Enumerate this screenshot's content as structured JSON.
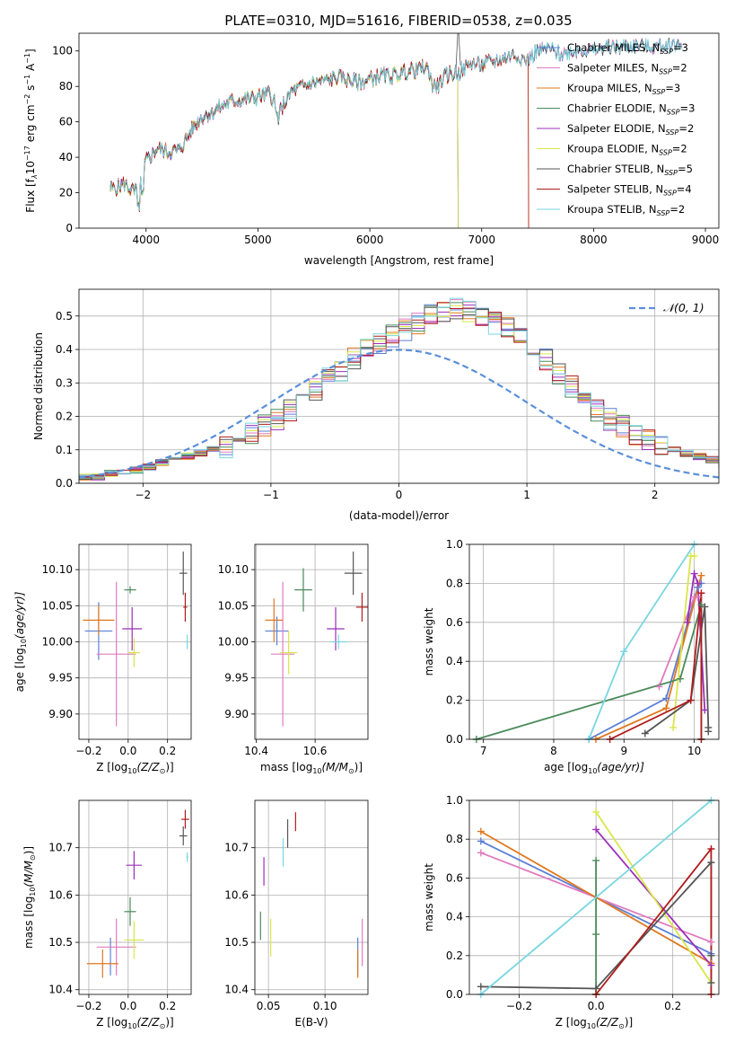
{
  "figure_title": "PLATE=0310, MJD=51616, FIBERID=0538, z=0.035",
  "colors": {
    "Chabrier MILES": "#5b7fd6",
    "Salpeter MILES": "#e07bbf",
    "Kroupa MILES": "#e0781f",
    "Chabrier ELODIE": "#4a8a5a",
    "Salpeter ELODIE": "#9b2fb8",
    "Kroupa ELODIE": "#d9e64a",
    "Chabrier STELIB": "#555555",
    "Salpeter STELIB": "#b01c1c",
    "Kroupa STELIB": "#78d6e0",
    "normal_curve": "#5b8fd9"
  },
  "chart_data": [
    {
      "id": "spectrum",
      "type": "line",
      "xlabel": "wavelength [Angstrom, rest frame]",
      "ylabel": "Flux [f",
      "ylabel_sub": "λ",
      "ylabel_rest": "10",
      "ylabel_exp1": "−17",
      "ylabel_mid": " erg cm",
      "ylabel_exp2": "−2",
      "ylabel_mid2": " s",
      "ylabel_exp3": "−1",
      "ylabel_tail": " A",
      "ylabel_exp4": "−1",
      "ylabel_end": "]",
      "xlim": [
        3400,
        9120
      ],
      "ylim": [
        0,
        110
      ],
      "xticks": [
        4000,
        5000,
        6000,
        7000,
        8000,
        9000
      ],
      "yticks": [
        0,
        20,
        40,
        60,
        80,
        100
      ],
      "continuum": {
        "x": [
          3650,
          3700,
          3800,
          3900,
          4000,
          4100,
          4200,
          4300,
          4400,
          4500,
          4600,
          4700,
          4800,
          4900,
          5000,
          5100,
          5200,
          5300,
          5400,
          5500,
          5600,
          5700,
          5800,
          5900,
          6000,
          6100,
          6200,
          6300,
          6400,
          6500,
          6600,
          6700,
          6800,
          6900,
          7000,
          7100,
          7200,
          7300,
          7400,
          7500,
          7600,
          7700,
          7800,
          7900,
          8000,
          8100,
          8200,
          8300,
          8400,
          8500,
          8600,
          8700,
          8800,
          8900,
          9000,
          9100
        ],
        "y": [
          24,
          22,
          25,
          20,
          38,
          45,
          43,
          44,
          55,
          63,
          66,
          70,
          72,
          73,
          74,
          76,
          67,
          77,
          80,
          82,
          83,
          85,
          84,
          82,
          84,
          86,
          86,
          88,
          89,
          91,
          80,
          87,
          88,
          93,
          92,
          94,
          96,
          98,
          95,
          100,
          101,
          98,
          100,
          101,
          100,
          102,
          102,
          103,
          103,
          102,
          103,
          104,
          103,
          104,
          105,
          104
        ]
      },
      "series": [
        {
          "name": "Chabrier MILES",
          "nssp": "3",
          "end_x": 8800
        },
        {
          "name": "Salpeter MILES",
          "nssp": "2",
          "end_x": 8800
        },
        {
          "name": "Kroupa MILES",
          "nssp": "3",
          "end_x": 7420
        },
        {
          "name": "Chabrier ELODIE",
          "nssp": "3",
          "end_x": 6790
        },
        {
          "name": "Salpeter ELODIE",
          "nssp": "2",
          "end_x": 6790
        },
        {
          "name": "Kroupa ELODIE",
          "nssp": "2",
          "end_x": 6790
        },
        {
          "name": "Chabrier STELIB",
          "nssp": "5",
          "end_x": 8800
        },
        {
          "name": "Salpeter STELIB",
          "nssp": "4",
          "end_x": 7420
        },
        {
          "name": "Kroupa STELIB",
          "nssp": "2",
          "end_x": 8800
        }
      ],
      "legend_label_suffix": ", N",
      "legend_label_sub": "SSP",
      "legend_label_eq": "="
    },
    {
      "id": "residuals",
      "type": "histogram",
      "xlabel": "(data-model)/error",
      "ylabel": "Normed distribution",
      "xlim": [
        -2.5,
        2.5
      ],
      "ylim": [
        0,
        0.58
      ],
      "xticks": [
        -2,
        -1,
        0,
        1,
        2
      ],
      "yticks": [
        0.0,
        0.1,
        0.2,
        0.3,
        0.4,
        0.5
      ],
      "bin_width": 0.1,
      "bin_start": -2.5,
      "base_shape": [
        0.02,
        0.02,
        0.03,
        0.03,
        0.04,
        0.05,
        0.06,
        0.07,
        0.08,
        0.09,
        0.1,
        0.11,
        0.13,
        0.15,
        0.17,
        0.19,
        0.22,
        0.25,
        0.28,
        0.31,
        0.34,
        0.37,
        0.4,
        0.42,
        0.44,
        0.46,
        0.48,
        0.5,
        0.51,
        0.52,
        0.51,
        0.5,
        0.48,
        0.46,
        0.43,
        0.4,
        0.37,
        0.33,
        0.29,
        0.25,
        0.22,
        0.19,
        0.17,
        0.15,
        0.13,
        0.11,
        0.1,
        0.09,
        0.08,
        0.07,
        0.06,
        0.05,
        0.05,
        0.04,
        0.04,
        0.03,
        0.03,
        0.03,
        0.02,
        0.02,
        0.02,
        0.02,
        0.02,
        0.02,
        0.02,
        0.02,
        0.02,
        0.02,
        0.02,
        0.02
      ],
      "legend_label": "𝒩(0, 1)"
    },
    {
      "id": "age_vs_Z",
      "type": "errorbar",
      "xlabel": "Z [log",
      "xlabel_sub": "10",
      "xlabel_tail": "(Z/Z",
      "xlabel_sub2": "⊙",
      "xlabel_end": ")]",
      "ylabel": "age  [log",
      "ylabel_sub": "10",
      "ylabel_tail": "(age/yr)]",
      "xlim": [
        -0.25,
        0.32
      ],
      "ylim": [
        9.865,
        10.135
      ],
      "xticks": [
        -0.2,
        0.0,
        0.2
      ],
      "yticks": [
        9.9,
        9.95,
        10.0,
        10.05,
        10.1
      ],
      "points": [
        {
          "series": "Chabrier MILES",
          "x": -0.15,
          "y": 10.015,
          "xerr": 0.07,
          "yerr": 0.04
        },
        {
          "series": "Salpeter MILES",
          "x": -0.06,
          "y": 9.983,
          "xerr": 0.1,
          "yerr": 0.1
        },
        {
          "series": "Kroupa MILES",
          "x": -0.15,
          "y": 10.03,
          "xerr": 0.08,
          "yerr": 0.02
        },
        {
          "series": "Chabrier ELODIE",
          "x": 0.01,
          "y": 10.072,
          "xerr": 0.03,
          "yerr": 0.005
        },
        {
          "series": "Salpeter ELODIE",
          "x": 0.02,
          "y": 10.018,
          "xerr": 0.05,
          "yerr": 0.03
        },
        {
          "series": "Kroupa ELODIE",
          "x": 0.03,
          "y": 9.985,
          "xerr": 0.03,
          "yerr": 0.02
        },
        {
          "series": "Chabrier STELIB",
          "x": 0.28,
          "y": 10.095,
          "xerr": 0.02,
          "yerr": 0.03
        },
        {
          "series": "Salpeter STELIB",
          "x": 0.29,
          "y": 10.048,
          "xerr": 0.01,
          "yerr": 0.02
        },
        {
          "series": "Kroupa STELIB",
          "x": 0.3,
          "y": 10.0,
          "xerr": 0.005,
          "yerr": 0.01
        }
      ]
    },
    {
      "id": "age_vs_mass",
      "type": "errorbar",
      "xlabel": "mass [log",
      "xlabel_sub": "10",
      "xlabel_tail": "(M/M",
      "xlabel_sub2": "⊙",
      "xlabel_end": ")]",
      "xlim": [
        10.395,
        10.78
      ],
      "ylim": [
        9.865,
        10.135
      ],
      "xticks": [
        10.4,
        10.6
      ],
      "yticks": [
        9.9,
        9.95,
        10.0,
        10.05,
        10.1
      ],
      "points": [
        {
          "series": "Chabrier MILES",
          "x": 10.47,
          "y": 10.015,
          "xerr": 0.04,
          "yerr": 0.02
        },
        {
          "series": "Salpeter MILES",
          "x": 10.49,
          "y": 9.983,
          "xerr": 0.04,
          "yerr": 0.1
        },
        {
          "series": "Kroupa MILES",
          "x": 10.46,
          "y": 10.03,
          "xerr": 0.03,
          "yerr": 0.03
        },
        {
          "series": "Chabrier ELODIE",
          "x": 10.56,
          "y": 10.072,
          "xerr": 0.03,
          "yerr": 0.03
        },
        {
          "series": "Salpeter ELODIE",
          "x": 10.67,
          "y": 10.018,
          "xerr": 0.03,
          "yerr": 0.03
        },
        {
          "series": "Kroupa ELODIE",
          "x": 10.51,
          "y": 9.985,
          "xerr": 0.03,
          "yerr": 0.03
        },
        {
          "series": "Chabrier STELIB",
          "x": 10.73,
          "y": 10.095,
          "xerr": 0.03,
          "yerr": 0.03
        },
        {
          "series": "Salpeter STELIB",
          "x": 10.76,
          "y": 10.048,
          "xerr": 0.02,
          "yerr": 0.02
        },
        {
          "series": "Kroupa STELIB",
          "x": 10.68,
          "y": 10.0,
          "xerr": 0.03,
          "yerr": 0.01
        }
      ]
    },
    {
      "id": "weights_vs_age",
      "type": "line",
      "xlabel": "age  [log",
      "xlabel_sub": "10",
      "xlabel_tail": "(age/yr)]",
      "ylabel": "mass weight",
      "xlim": [
        6.8,
        10.35
      ],
      "ylim": [
        0,
        1
      ],
      "xticks": [
        7,
        8,
        9,
        10
      ],
      "yticks": [
        0.0,
        0.2,
        0.4,
        0.6,
        0.8,
        1.0
      ],
      "series": [
        {
          "name": "Chabrier MILES",
          "x": [
            8.5,
            9.6,
            10.05,
            10.1
          ],
          "y": [
            0.0,
            0.21,
            0.78,
            0.8
          ]
        },
        {
          "name": "Salpeter MILES",
          "x": [
            9.5,
            10.0,
            10.05
          ],
          "y": [
            0.27,
            0.73,
            0.73
          ]
        },
        {
          "name": "Kroupa MILES",
          "x": [
            8.6,
            9.6,
            10.1
          ],
          "y": [
            0.0,
            0.16,
            0.84
          ]
        },
        {
          "name": "Chabrier ELODIE",
          "x": [
            6.9,
            9.8,
            10.1,
            10.1
          ],
          "y": [
            0.0,
            0.31,
            0.69,
            0.0
          ]
        },
        {
          "name": "Salpeter ELODIE",
          "x": [
            9.9,
            10.0,
            10.05,
            10.15
          ],
          "y": [
            0.6,
            0.85,
            0.8,
            0.15
          ]
        },
        {
          "name": "Kroupa ELODIE",
          "x": [
            9.7,
            9.95,
            10.0
          ],
          "y": [
            0.06,
            0.94,
            0.94
          ]
        },
        {
          "name": "Chabrier STELIB",
          "x": [
            9.3,
            9.95,
            10.15,
            10.2,
            10.2
          ],
          "y": [
            0.03,
            0.2,
            0.68,
            0.06,
            0.04
          ]
        },
        {
          "name": "Salpeter STELIB",
          "x": [
            8.8,
            9.95,
            10.1,
            10.1
          ],
          "y": [
            0.0,
            0.2,
            0.75,
            0.0
          ]
        },
        {
          "name": "Kroupa STELIB",
          "x": [
            8.5,
            9.0,
            10.0
          ],
          "y": [
            0.0,
            0.45,
            1.0
          ]
        }
      ]
    },
    {
      "id": "mass_vs_Z",
      "type": "errorbar",
      "xlabel": "Z [log",
      "xlabel_sub": "10",
      "xlabel_tail": "(Z/Z",
      "xlabel_sub2": "⊙",
      "xlabel_end": ")]",
      "ylabel": "mass [log",
      "ylabel_sub": "10",
      "ylabel_tail": "(M/M",
      "ylabel_sub2": "⊙",
      "ylabel_end": ")]",
      "xlim": [
        -0.25,
        0.32
      ],
      "ylim": [
        10.39,
        10.8
      ],
      "xticks": [
        -0.2,
        0.0,
        0.2
      ],
      "yticks": [
        10.4,
        10.5,
        10.6,
        10.7
      ],
      "points": [
        {
          "series": "Chabrier MILES",
          "x": -0.09,
          "y": 10.47,
          "xerr": 0.0,
          "yerr": 0.04
        },
        {
          "series": "Salpeter MILES",
          "x": -0.06,
          "y": 10.49,
          "xerr": 0.1,
          "yerr": 0.06
        },
        {
          "series": "Kroupa MILES",
          "x": -0.13,
          "y": 10.455,
          "xerr": 0.08,
          "yerr": 0.03
        },
        {
          "series": "Chabrier ELODIE",
          "x": 0.01,
          "y": 10.565,
          "xerr": 0.03,
          "yerr": 0.03
        },
        {
          "series": "Salpeter ELODIE",
          "x": 0.03,
          "y": 10.663,
          "xerr": 0.04,
          "yerr": 0.03
        },
        {
          "series": "Kroupa ELODIE",
          "x": 0.03,
          "y": 10.505,
          "xerr": 0.05,
          "yerr": 0.04
        },
        {
          "series": "Chabrier STELIB",
          "x": 0.28,
          "y": 10.725,
          "xerr": 0.02,
          "yerr": 0.02
        },
        {
          "series": "Salpeter STELIB",
          "x": 0.29,
          "y": 10.76,
          "xerr": 0.02,
          "yerr": 0.02
        },
        {
          "series": "Kroupa STELIB",
          "x": 0.3,
          "y": 10.68,
          "xerr": 0.005,
          "yerr": 0.01
        }
      ]
    },
    {
      "id": "mass_vs_ebv",
      "type": "errorbar",
      "xlabel": "E(B-V)",
      "xlim": [
        0.038,
        0.138
      ],
      "ylim": [
        10.39,
        10.8
      ],
      "xticks": [
        0.05,
        0.1
      ],
      "yticks": [
        10.4,
        10.5,
        10.6,
        10.7
      ],
      "points": [
        {
          "series": "Chabrier MILES",
          "x": 0.129,
          "y": 10.47,
          "xerr": 0.0,
          "yerr": 0.04
        },
        {
          "series": "Salpeter MILES",
          "x": 0.133,
          "y": 10.5,
          "xerr": 0.0,
          "yerr": 0.05
        },
        {
          "series": "Kroupa MILES",
          "x": 0.129,
          "y": 10.455,
          "xerr": 0.0,
          "yerr": 0.03
        },
        {
          "series": "Chabrier ELODIE",
          "x": 0.043,
          "y": 10.535,
          "xerr": 0.0,
          "yerr": 0.03
        },
        {
          "series": "Salpeter ELODIE",
          "x": 0.046,
          "y": 10.65,
          "xerr": 0.0,
          "yerr": 0.03
        },
        {
          "series": "Kroupa ELODIE",
          "x": 0.052,
          "y": 10.51,
          "xerr": 0.0,
          "yerr": 0.04
        },
        {
          "series": "Chabrier STELIB",
          "x": 0.067,
          "y": 10.73,
          "xerr": 0.0,
          "yerr": 0.03
        },
        {
          "series": "Salpeter STELIB",
          "x": 0.074,
          "y": 10.755,
          "xerr": 0.0,
          "yerr": 0.02
        },
        {
          "series": "Kroupa STELIB",
          "x": 0.063,
          "y": 10.69,
          "xerr": 0.0,
          "yerr": 0.03
        }
      ]
    },
    {
      "id": "weights_vs_Z",
      "type": "line",
      "xlabel": "Z [log",
      "xlabel_sub": "10",
      "xlabel_tail": "(Z/Z",
      "xlabel_sub2": "⊙",
      "xlabel_end": ")]",
      "ylabel": "mass weight",
      "xlim": [
        -0.33,
        0.32
      ],
      "ylim": [
        0,
        1
      ],
      "xticks": [
        -0.2,
        0.0,
        0.2
      ],
      "yticks": [
        0.0,
        0.2,
        0.4,
        0.6,
        0.8,
        1.0
      ],
      "series": [
        {
          "name": "Chabrier MILES",
          "x": [
            -0.3,
            0.3
          ],
          "y": [
            0.79,
            0.21
          ]
        },
        {
          "name": "Salpeter MILES",
          "x": [
            -0.3,
            0.3
          ],
          "y": [
            0.73,
            0.27
          ]
        },
        {
          "name": "Kroupa MILES",
          "x": [
            -0.3,
            0.3
          ],
          "y": [
            0.84,
            0.16
          ]
        },
        {
          "name": "Chabrier ELODIE",
          "x": [
            0.0,
            0.0,
            0.0
          ],
          "y": [
            0.0,
            0.31,
            0.69
          ]
        },
        {
          "name": "Salpeter ELODIE",
          "x": [
            0.0,
            0.3
          ],
          "y": [
            0.85,
            0.15
          ]
        },
        {
          "name": "Kroupa ELODIE",
          "x": [
            0.0,
            0.3
          ],
          "y": [
            0.94,
            0.06
          ]
        },
        {
          "name": "Chabrier STELIB",
          "x": [
            -0.3,
            0.0,
            0.3,
            0.3,
            0.3
          ],
          "y": [
            0.04,
            0.03,
            0.68,
            0.2,
            0.06
          ]
        },
        {
          "name": "Salpeter STELIB",
          "x": [
            0.0,
            0.3,
            0.3
          ],
          "y": [
            0.0,
            0.75,
            0.0
          ]
        },
        {
          "name": "Kroupa STELIB",
          "x": [
            -0.3,
            0.3
          ],
          "y": [
            0.0,
            1.0
          ]
        }
      ]
    }
  ]
}
